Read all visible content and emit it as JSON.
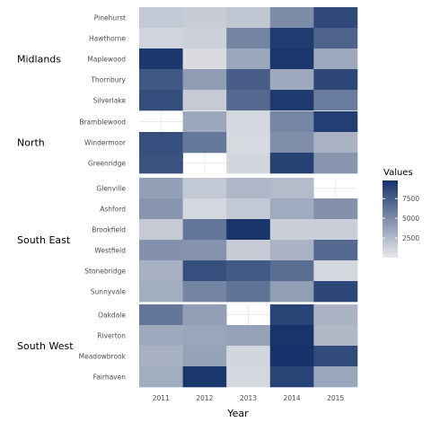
{
  "chart_data": {
    "type": "heatmap",
    "xlabel": "Year",
    "ylabel": "",
    "x_categories": [
      "2011",
      "2012",
      "2013",
      "2014",
      "2015"
    ],
    "legend": {
      "title": "Values",
      "placement": "right",
      "ticks": [
        2500,
        5000,
        7500
      ],
      "range": [
        0,
        9800
      ]
    },
    "colors": {
      "low": "#e8e8ea",
      "high": "#15336a",
      "background": "#ffffff",
      "grid": "#ebebeb"
    },
    "grid": true,
    "facets": [
      {
        "name": "Midlands",
        "rows": [
          {
            "label": "Pinehurst",
            "values": [
              1700,
              1500,
              1800,
              5000,
              8600
            ]
          },
          {
            "label": "Hawthorne",
            "values": [
              1100,
              1300,
              5400,
              9300,
              7200
            ]
          },
          {
            "label": "Maplewood",
            "values": [
              9500,
              700,
              3600,
              9600,
              3400
            ]
          },
          {
            "label": "Thornbury",
            "values": [
              7800,
              4100,
              7500,
              3400,
              8700
            ]
          },
          {
            "label": "Silverlake",
            "values": [
              8400,
              1600,
              6800,
              9400,
              5800
            ]
          }
        ]
      },
      {
        "name": "North",
        "rows": [
          {
            "label": "Bramblewood",
            "values": [
              null,
              3500,
              900,
              5300,
              9200
            ]
          },
          {
            "label": "Windermoor",
            "values": [
              8300,
              6100,
              800,
              4900,
              2900
            ]
          },
          {
            "label": "Greenridge",
            "values": [
              8100,
              null,
              1000,
              9000,
              4500
            ]
          }
        ]
      },
      {
        "name": "South East",
        "rows": [
          {
            "label": "Glenville",
            "values": [
              3900,
              1700,
              2700,
              2400,
              null
            ]
          },
          {
            "label": "Ashford",
            "values": [
              4500,
              900,
              1700,
              3300,
              4700
            ]
          },
          {
            "label": "Brookfield",
            "values": [
              1600,
              6200,
              9700,
              1400,
              1400
            ]
          },
          {
            "label": "Westfield",
            "values": [
              4700,
              4600,
              1500,
              2900,
              6900
            ]
          },
          {
            "label": "Stonebridge",
            "values": [
              3000,
              8300,
              7700,
              6600,
              900
            ]
          },
          {
            "label": "Sunnyvale",
            "values": [
              3200,
              5400,
              6300,
              4000,
              8700
            ]
          }
        ]
      },
      {
        "name": "South West",
        "rows": [
          {
            "label": "Oakdale",
            "values": [
              6200,
              4000,
              null,
              8900,
              2900
            ]
          },
          {
            "label": "Riverton",
            "values": [
              3400,
              3600,
              3800,
              9700,
              2600
            ]
          },
          {
            "label": "Meadowbrook",
            "values": [
              3000,
              3800,
              1000,
              9800,
              8500
            ]
          },
          {
            "label": "Fairhaven",
            "values": [
              3200,
              9600,
              900,
              8900,
              3600
            ]
          }
        ]
      }
    ]
  }
}
